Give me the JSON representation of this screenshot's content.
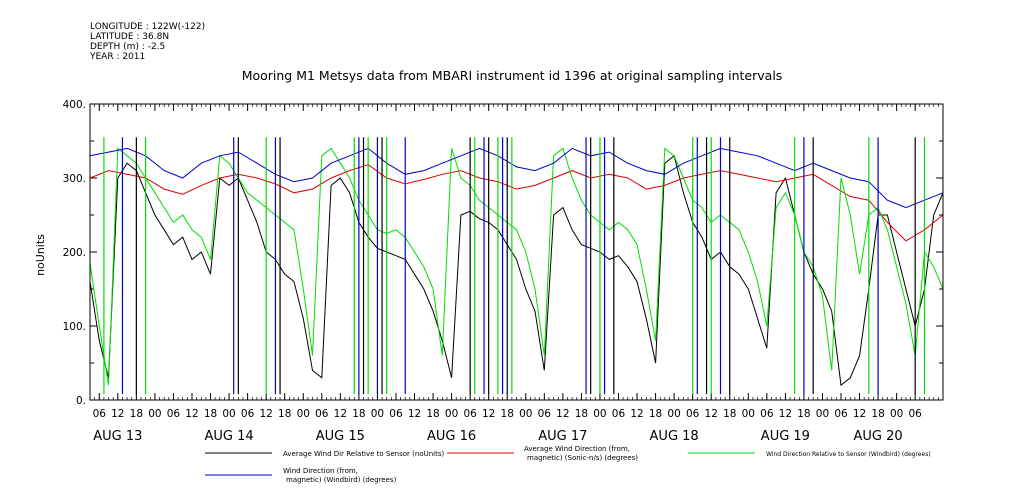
{
  "header": {
    "longitude": "LONGITUDE : 122W(-122)",
    "latitude": "LATITUDE : 36.8N",
    "depth": "DEPTH (m) : -2.5",
    "year": "YEAR : 2011"
  },
  "chart_data": {
    "type": "line",
    "title": "Mooring M1 Metsys data from MBARI instrument id 1396 at original sampling intervals",
    "xlabel": "",
    "ylabel": "noUnits",
    "ylim": [
      0,
      400
    ],
    "yticks": [
      0,
      100,
      200,
      300,
      400
    ],
    "ytick_labels": [
      "0.",
      "100.",
      "200.",
      "300.",
      "400."
    ],
    "x_range_hours": [
      0,
      184
    ],
    "hour_ticks": [
      {
        "h": 2,
        "label": "06"
      },
      {
        "h": 6,
        "label": "12"
      },
      {
        "h": 10,
        "label": "18"
      },
      {
        "h": 14,
        "label": "00"
      },
      {
        "h": 18,
        "label": "06"
      },
      {
        "h": 22,
        "label": "12"
      },
      {
        "h": 26,
        "label": "18"
      },
      {
        "h": 30,
        "label": "00"
      },
      {
        "h": 34,
        "label": "06"
      },
      {
        "h": 38,
        "label": "12"
      },
      {
        "h": 42,
        "label": "18"
      },
      {
        "h": 46,
        "label": "00"
      },
      {
        "h": 50,
        "label": "06"
      },
      {
        "h": 54,
        "label": "12"
      },
      {
        "h": 58,
        "label": "18"
      },
      {
        "h": 62,
        "label": "00"
      },
      {
        "h": 66,
        "label": "06"
      },
      {
        "h": 70,
        "label": "12"
      },
      {
        "h": 74,
        "label": "18"
      },
      {
        "h": 78,
        "label": "00"
      },
      {
        "h": 82,
        "label": "06"
      },
      {
        "h": 86,
        "label": "12"
      },
      {
        "h": 90,
        "label": "18"
      },
      {
        "h": 94,
        "label": "00"
      },
      {
        "h": 98,
        "label": "06"
      },
      {
        "h": 102,
        "label": "12"
      },
      {
        "h": 106,
        "label": "18"
      },
      {
        "h": 110,
        "label": "00"
      },
      {
        "h": 114,
        "label": "06"
      },
      {
        "h": 118,
        "label": "12"
      },
      {
        "h": 122,
        "label": "18"
      },
      {
        "h": 126,
        "label": "00"
      },
      {
        "h": 130,
        "label": "06"
      },
      {
        "h": 134,
        "label": "12"
      },
      {
        "h": 138,
        "label": "18"
      },
      {
        "h": 142,
        "label": "00"
      },
      {
        "h": 146,
        "label": "06"
      },
      {
        "h": 150,
        "label": "12"
      },
      {
        "h": 154,
        "label": "18"
      },
      {
        "h": 158,
        "label": "00"
      },
      {
        "h": 162,
        "label": "06"
      },
      {
        "h": 166,
        "label": "12"
      },
      {
        "h": 170,
        "label": "18"
      },
      {
        "h": 174,
        "label": "00"
      },
      {
        "h": 178,
        "label": "06"
      }
    ],
    "date_labels": [
      {
        "h": 6,
        "label": "AUG 13"
      },
      {
        "h": 30,
        "label": "AUG 14"
      },
      {
        "h": 54,
        "label": "AUG 15"
      },
      {
        "h": 78,
        "label": "AUG 16"
      },
      {
        "h": 102,
        "label": "AUG 17"
      },
      {
        "h": 126,
        "label": "AUG 18"
      },
      {
        "h": 150,
        "label": "AUG 19"
      },
      {
        "h": 170,
        "label": "AUG 20"
      }
    ],
    "series": [
      {
        "name": "Average Wind Dir Relative to Sensor (noUnits)",
        "color": "#000000",
        "x": [
          0,
          2,
          4,
          6,
          8,
          10,
          12,
          14,
          16,
          18,
          20,
          22,
          24,
          26,
          28,
          30,
          32,
          34,
          36,
          38,
          40,
          42,
          44,
          46,
          48,
          50,
          52,
          54,
          56,
          58,
          60,
          62,
          64,
          66,
          68,
          70,
          72,
          74,
          76,
          78,
          80,
          82,
          84,
          86,
          88,
          90,
          92,
          94,
          96,
          98,
          100,
          102,
          104,
          106,
          108,
          110,
          112,
          114,
          116,
          118,
          120,
          122,
          124,
          126,
          128,
          130,
          132,
          134,
          136,
          138,
          140,
          142,
          144,
          146,
          148,
          150,
          152,
          154,
          156,
          158,
          160,
          162,
          164,
          166,
          168,
          170,
          172,
          174,
          176,
          178,
          180,
          182,
          184
        ],
        "y": [
          160,
          80,
          30,
          300,
          320,
          310,
          280,
          250,
          230,
          210,
          220,
          190,
          200,
          170,
          300,
          290,
          300,
          270,
          240,
          200,
          190,
          170,
          160,
          110,
          40,
          30,
          290,
          300,
          280,
          240,
          220,
          205,
          200,
          195,
          190,
          170,
          150,
          120,
          80,
          30,
          250,
          255,
          245,
          240,
          230,
          210,
          190,
          150,
          120,
          40,
          250,
          260,
          230,
          210,
          205,
          200,
          190,
          195,
          180,
          160,
          110,
          50,
          320,
          330,
          280,
          240,
          220,
          190,
          200,
          180,
          170,
          150,
          110,
          70,
          280,
          300,
          250,
          200,
          170,
          150,
          120,
          20,
          30,
          60,
          150,
          250,
          250,
          200,
          150,
          100,
          150,
          250,
          280
        ]
      },
      {
        "name": "Average Wind Direction (from, magnetic) (Sonic-n/s) (degrees)",
        "color": "#dd0000",
        "x": [
          0,
          4,
          8,
          12,
          16,
          20,
          24,
          28,
          32,
          36,
          40,
          44,
          48,
          52,
          56,
          60,
          64,
          68,
          72,
          76,
          80,
          84,
          88,
          92,
          96,
          100,
          104,
          108,
          112,
          116,
          120,
          124,
          128,
          132,
          136,
          140,
          144,
          148,
          152,
          156,
          160,
          164,
          168,
          172,
          176,
          180,
          184
        ],
        "y": [
          300,
          310,
          305,
          300,
          285,
          278,
          290,
          300,
          305,
          300,
          292,
          280,
          285,
          300,
          310,
          318,
          300,
          292,
          298,
          305,
          310,
          300,
          295,
          285,
          290,
          300,
          310,
          300,
          305,
          300,
          285,
          290,
          300,
          305,
          310,
          305,
          300,
          295,
          300,
          305,
          290,
          275,
          270,
          240,
          215,
          230,
          250
        ]
      },
      {
        "name": "Wind Direction Relative to Sensor (Windbird) (degrees)",
        "color": "#00dd00",
        "x": [
          0,
          2,
          4,
          6,
          8,
          10,
          12,
          14,
          16,
          18,
          20,
          22,
          24,
          26,
          28,
          30,
          32,
          34,
          36,
          38,
          40,
          42,
          44,
          46,
          48,
          50,
          52,
          54,
          56,
          58,
          60,
          62,
          64,
          66,
          68,
          70,
          72,
          74,
          76,
          78,
          80,
          82,
          84,
          86,
          88,
          90,
          92,
          94,
          96,
          98,
          100,
          102,
          104,
          106,
          108,
          110,
          112,
          114,
          116,
          118,
          120,
          122,
          124,
          126,
          128,
          130,
          132,
          134,
          136,
          138,
          140,
          142,
          144,
          146,
          148,
          150,
          152,
          154,
          156,
          158,
          160,
          162,
          164,
          166,
          168,
          170,
          172,
          174,
          176,
          178,
          180,
          182,
          184
        ],
        "y": [
          185,
          100,
          20,
          340,
          330,
          320,
          300,
          280,
          260,
          240,
          250,
          230,
          220,
          190,
          330,
          320,
          300,
          280,
          270,
          260,
          250,
          240,
          230,
          150,
          60,
          330,
          340,
          320,
          300,
          270,
          250,
          230,
          225,
          230,
          220,
          200,
          180,
          150,
          60,
          340,
          300,
          290,
          270,
          260,
          250,
          240,
          230,
          200,
          150,
          60,
          330,
          340,
          300,
          270,
          250,
          240,
          230,
          240,
          230,
          210,
          150,
          80,
          340,
          330,
          300,
          270,
          260,
          240,
          250,
          240,
          230,
          200,
          160,
          100,
          260,
          280,
          250,
          200,
          180,
          140,
          40,
          300,
          250,
          170,
          250,
          260,
          230,
          180,
          130,
          60,
          200,
          180,
          150
        ]
      },
      {
        "name": "Wind Direction (from, magnetic) (Windbird) (degrees)",
        "color": "#0000cc",
        "x": [
          0,
          4,
          8,
          12,
          16,
          20,
          24,
          28,
          32,
          36,
          40,
          44,
          48,
          52,
          56,
          60,
          64,
          68,
          72,
          76,
          80,
          84,
          88,
          92,
          96,
          100,
          104,
          108,
          112,
          116,
          120,
          124,
          128,
          132,
          136,
          140,
          144,
          148,
          152,
          156,
          160,
          164,
          168,
          172,
          176,
          180,
          184
        ],
        "y": [
          330,
          335,
          340,
          330,
          310,
          300,
          320,
          330,
          335,
          320,
          305,
          295,
          300,
          320,
          330,
          340,
          320,
          305,
          310,
          320,
          330,
          340,
          330,
          315,
          310,
          320,
          340,
          330,
          335,
          320,
          310,
          305,
          320,
          330,
          340,
          335,
          330,
          320,
          310,
          320,
          310,
          300,
          295,
          270,
          260,
          270,
          280
        ]
      }
    ],
    "spike_hours": [
      3,
      7,
      10,
      12,
      31,
      32,
      38,
      40,
      41,
      57,
      58,
      59,
      60,
      62,
      63,
      64,
      68,
      82,
      83,
      85,
      86,
      88,
      89,
      90,
      91,
      107,
      108,
      110,
      111,
      113,
      130,
      131,
      133,
      134,
      136,
      138,
      152,
      154,
      156,
      168,
      170,
      178,
      180
    ]
  },
  "legend": {
    "black_label": "Average Wind Dir Relative to Sensor (noUnits)",
    "red_label_line1": "Average Wind Direction (from,",
    "red_label_line2": "magnetic) (Sonic-n/s) (degrees)",
    "green_label": "Wind Direction Relative to Sensor (Windbird) (degrees)",
    "blue_label_line1": "Wind Direction (from,",
    "blue_label_line2": "magnetic) (Windbird) (degrees)",
    "colors": {
      "black": "#000000",
      "red": "#dd0000",
      "green": "#00dd00",
      "blue": "#0000cc"
    }
  }
}
